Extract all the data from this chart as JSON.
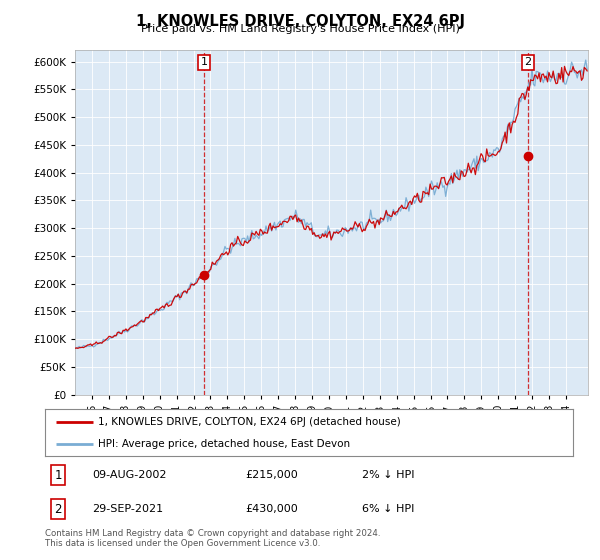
{
  "title": "1, KNOWLES DRIVE, COLYTON, EX24 6PJ",
  "subtitle": "Price paid vs. HM Land Registry's House Price Index (HPI)",
  "legend_line1": "1, KNOWLES DRIVE, COLYTON, EX24 6PJ (detached house)",
  "legend_line2": "HPI: Average price, detached house, East Devon",
  "sale1_label": "1",
  "sale1_date": "09-AUG-2002",
  "sale1_price": "£215,000",
  "sale1_hpi": "2% ↓ HPI",
  "sale1_year": 2002.62,
  "sale1_value": 215000,
  "sale2_label": "2",
  "sale2_date": "29-SEP-2021",
  "sale2_price": "£430,000",
  "sale2_hpi": "6% ↓ HPI",
  "sale2_year": 2021.75,
  "sale2_value": 430000,
  "footer1": "Contains HM Land Registry data © Crown copyright and database right 2024.",
  "footer2": "This data is licensed under the Open Government Licence v3.0.",
  "xmin": 1995.0,
  "xmax": 2025.3,
  "ymin": 0,
  "ymax": 620000,
  "yticks": [
    0,
    50000,
    100000,
    150000,
    200000,
    250000,
    300000,
    350000,
    400000,
    450000,
    500000,
    550000,
    600000
  ],
  "line_color_property": "#cc0000",
  "line_color_hpi": "#7aadd4",
  "marker_color": "#cc0000",
  "plot_bg_color": "#dce9f5",
  "background_color": "#ffffff",
  "grid_color": "#ffffff"
}
